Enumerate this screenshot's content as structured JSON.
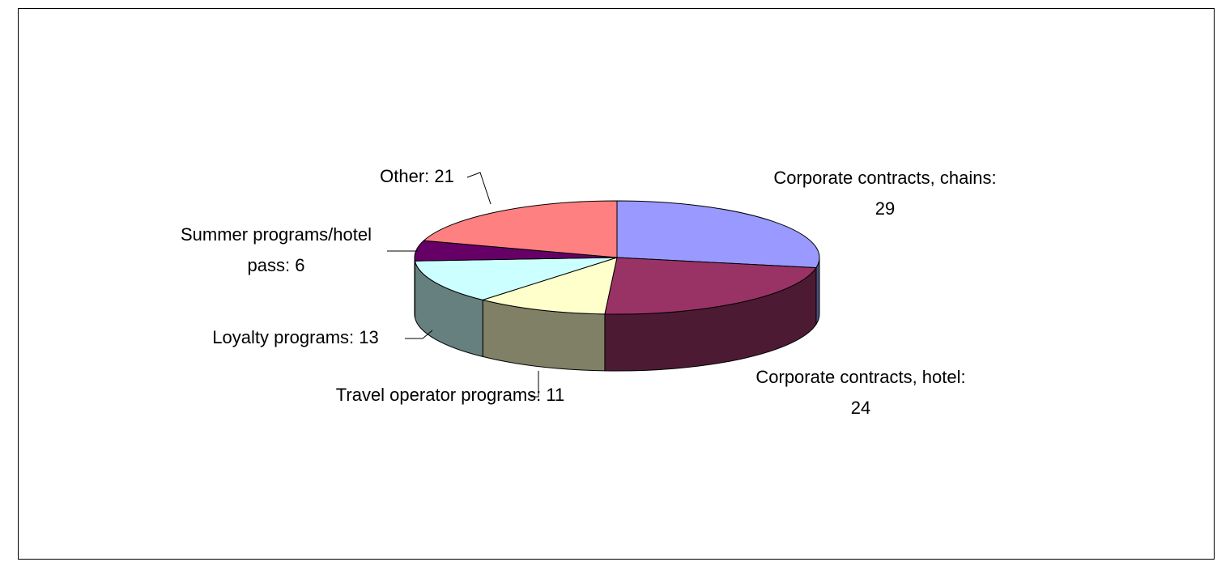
{
  "chart_data": {
    "type": "pie",
    "values": [
      29,
      24,
      11,
      13,
      6,
      21
    ],
    "value_labels": [
      "Corporate contracts, chains: 29",
      "Corporate contracts, hotel: 24",
      "Travel operator programs: 11",
      "Loyalty programs: 13",
      "Summer programs/hotel pass: 6",
      "Other: 21"
    ],
    "colors": [
      "#9999ff",
      "#993366",
      "#ffffcc",
      "#ccffff",
      "#660066",
      "#ff8080"
    ]
  }
}
